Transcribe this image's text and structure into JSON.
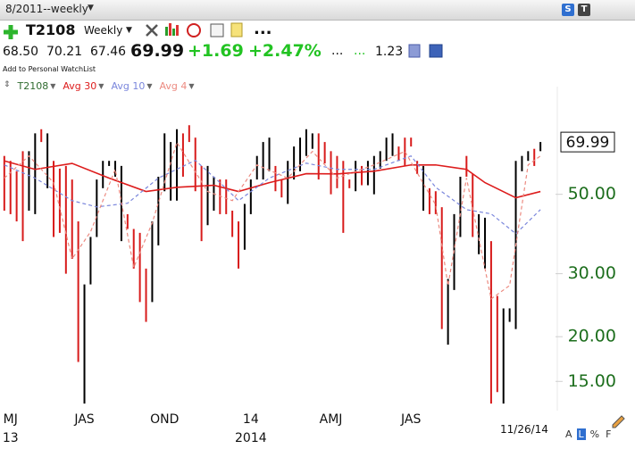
{
  "window": {
    "title": "8/2011--weekly",
    "badges": [
      "S",
      "T"
    ]
  },
  "toolbar": {
    "symbol": "T2108",
    "period": "Weekly",
    "more": "..."
  },
  "quote": {
    "open": "68.50",
    "high": "70.21",
    "low": "67.46",
    "last": "69.99",
    "change": "+1.69",
    "change_pct": "+2.47%",
    "extra": [
      "...",
      "..."
    ],
    "ratio": "1.23"
  },
  "watchlist_link": "Add to Personal WatchList",
  "chart_data": {
    "type": "hilo",
    "log_scale": true,
    "x": [
      0,
      1,
      2,
      3,
      4,
      5,
      6,
      7,
      8,
      9,
      10,
      11,
      12,
      13,
      14,
      15,
      16,
      17,
      18,
      19,
      20,
      21,
      22,
      23,
      24,
      25,
      26,
      27,
      28,
      29,
      30,
      31,
      32,
      33,
      34,
      35,
      36,
      37,
      38,
      39,
      40,
      41,
      42,
      43,
      44,
      45,
      46,
      47,
      48,
      49,
      50,
      51,
      52,
      53,
      54,
      55,
      56,
      57,
      58,
      59,
      60,
      61,
      62,
      63,
      64,
      65,
      66,
      67,
      68,
      69,
      70,
      71,
      72,
      73,
      74,
      75,
      76,
      77,
      78,
      79,
      80,
      81,
      82,
      83,
      84,
      85,
      86,
      87
    ],
    "xlim": [
      -0.7,
      89.3
    ],
    "xticks": [
      {
        "value": 1,
        "label": "MJ"
      },
      {
        "value": 13,
        "label": "JAS"
      },
      {
        "value": 26,
        "label": "OND"
      },
      {
        "value": 40,
        "label": "14"
      },
      {
        "value": 53,
        "label": "AMJ"
      },
      {
        "value": 66,
        "label": "JAS"
      }
    ],
    "year_ticks": [
      {
        "value": 1,
        "label": "13"
      },
      {
        "value": 40,
        "label": "2014"
      }
    ],
    "ylim": [
      12.5,
      100
    ],
    "yticks": [
      {
        "value": 15,
        "label": "15.00"
      },
      {
        "value": 20,
        "label": "20.00"
      },
      {
        "value": 30,
        "label": "30.00"
      },
      {
        "value": 50,
        "label": "50.00"
      }
    ],
    "last_value": {
      "value": 69.99,
      "label": "69.99"
    },
    "end_date": "11/26/14",
    "series": [
      {
        "name": "T2108",
        "color": "#2f6b2f",
        "high": [
          64,
          62,
          58,
          66,
          66,
          74,
          76,
          74,
          62,
          59,
          60,
          55,
          42,
          28,
          38,
          55,
          62,
          62,
          62,
          60,
          44,
          40,
          39,
          31,
          42,
          56,
          74,
          70,
          76,
          74,
          78,
          72,
          60,
          60,
          56,
          55,
          55,
          45,
          42,
          47,
          55,
          64,
          70,
          72,
          60,
          55,
          62,
          68,
          72,
          76,
          74,
          74,
          70,
          66,
          64,
          62,
          55,
          62,
          60,
          62,
          64,
          66,
          72,
          74,
          68,
          72,
          72,
          62,
          60,
          52,
          51,
          46,
          29,
          44,
          56,
          64,
          57,
          44,
          43,
          37,
          26,
          24,
          24,
          62,
          64,
          66,
          67,
          70
        ],
        "low": [
          45,
          44,
          42,
          37,
          45,
          44,
          70,
          52,
          38,
          39,
          30,
          33,
          17,
          13,
          28,
          38,
          52,
          60,
          56,
          37,
          40,
          31,
          25,
          22,
          25,
          36,
          51,
          48,
          48,
          56,
          70,
          51,
          37,
          41,
          45,
          44,
          44,
          38,
          31,
          35,
          44,
          55,
          55,
          58,
          51,
          49,
          47,
          55,
          58,
          64,
          67,
          55,
          61,
          50,
          52,
          39,
          52,
          51,
          53,
          53,
          50,
          59,
          62,
          64,
          62,
          60,
          68,
          57,
          45,
          44,
          44,
          21,
          19,
          27,
          38,
          56,
          38,
          34,
          31,
          13,
          14,
          13,
          22,
          21,
          58,
          62,
          60,
          66
        ],
        "bar_colors": [
          "#d81b1b",
          "#d81b1b",
          "#d81b1b",
          "#d81b1b",
          "#000000",
          "#000000",
          "#d81b1b",
          "#000000",
          "#d81b1b",
          "#d81b1b",
          "#d81b1b",
          "#d81b1b",
          "#d81b1b",
          "#000000",
          "#000000",
          "#000000",
          "#000000",
          "#000000",
          "#000000",
          "#000000",
          "#d81b1b",
          "#d81b1b",
          "#d81b1b",
          "#d81b1b",
          "#000000",
          "#000000",
          "#000000",
          "#000000",
          "#000000",
          "#d81b1b",
          "#d81b1b",
          "#d81b1b",
          "#d81b1b",
          "#000000",
          "#000000",
          "#d81b1b",
          "#d81b1b",
          "#d81b1b",
          "#d81b1b",
          "#000000",
          "#000000",
          "#000000",
          "#000000",
          "#000000",
          "#d81b1b",
          "#d81b1b",
          "#000000",
          "#000000",
          "#000000",
          "#000000",
          "#000000",
          "#d81b1b",
          "#d81b1b",
          "#d81b1b",
          "#d81b1b",
          "#d81b1b",
          "#d81b1b",
          "#000000",
          "#d81b1b",
          "#000000",
          "#000000",
          "#000000",
          "#000000",
          "#000000",
          "#d81b1b",
          "#d81b1b",
          "#d81b1b",
          "#d81b1b",
          "#000000",
          "#d81b1b",
          "#d81b1b",
          "#d81b1b",
          "#000000",
          "#000000",
          "#000000",
          "#d81b1b",
          "#d81b1b",
          "#000000",
          "#000000",
          "#d81b1b",
          "#d81b1b",
          "#000000",
          "#000000",
          "#000000",
          "#000000",
          "#000000",
          "#d81b1b",
          "#000000"
        ]
      },
      {
        "name": "Avg 30",
        "color": "#dd1c1c",
        "dashed": false,
        "x": [
          0,
          5,
          11,
          17,
          23,
          28,
          34,
          38,
          43,
          49,
          54,
          60,
          66,
          70,
          75,
          78,
          83,
          87
        ],
        "values": [
          62,
          58.7,
          61,
          55.5,
          50.9,
          52.3,
          53,
          50.9,
          53.9,
          57.1,
          57,
          58,
          60.4,
          60.4,
          58.7,
          53.9,
          48.9,
          50.9
        ]
      },
      {
        "name": "Avg 10",
        "color": "#7a86dc",
        "dashed": true,
        "x": [
          0,
          5,
          11,
          15,
          20,
          25,
          31,
          35,
          38,
          43,
          49,
          54,
          60,
          66,
          70,
          75,
          79,
          83,
          87
        ],
        "values": [
          60.4,
          55.5,
          48,
          46.1,
          47.2,
          55.5,
          62.2,
          53.9,
          48,
          55.5,
          61.1,
          58.7,
          58.7,
          64,
          52.3,
          45.3,
          44.1,
          38.8,
          45.3
        ]
      },
      {
        "name": "Avg 4",
        "color": "#ec8a80",
        "dashed": true,
        "x": [
          0,
          4,
          8,
          11,
          14,
          18,
          21,
          24,
          28,
          33,
          37,
          41,
          46,
          50,
          54,
          60,
          65,
          70,
          72,
          75,
          79,
          82,
          85,
          87
        ],
        "values": [
          55.5,
          64,
          53.9,
          33,
          39.3,
          58.7,
          31.2,
          41.6,
          69.8,
          50.9,
          48,
          60.4,
          55.5,
          65.9,
          55.5,
          60.4,
          65.9,
          46.7,
          27.8,
          55.5,
          25.5,
          27.8,
          60.4,
          64
        ]
      }
    ]
  },
  "footer": {
    "buttons": [
      "A",
      "L",
      "%",
      "F"
    ]
  }
}
